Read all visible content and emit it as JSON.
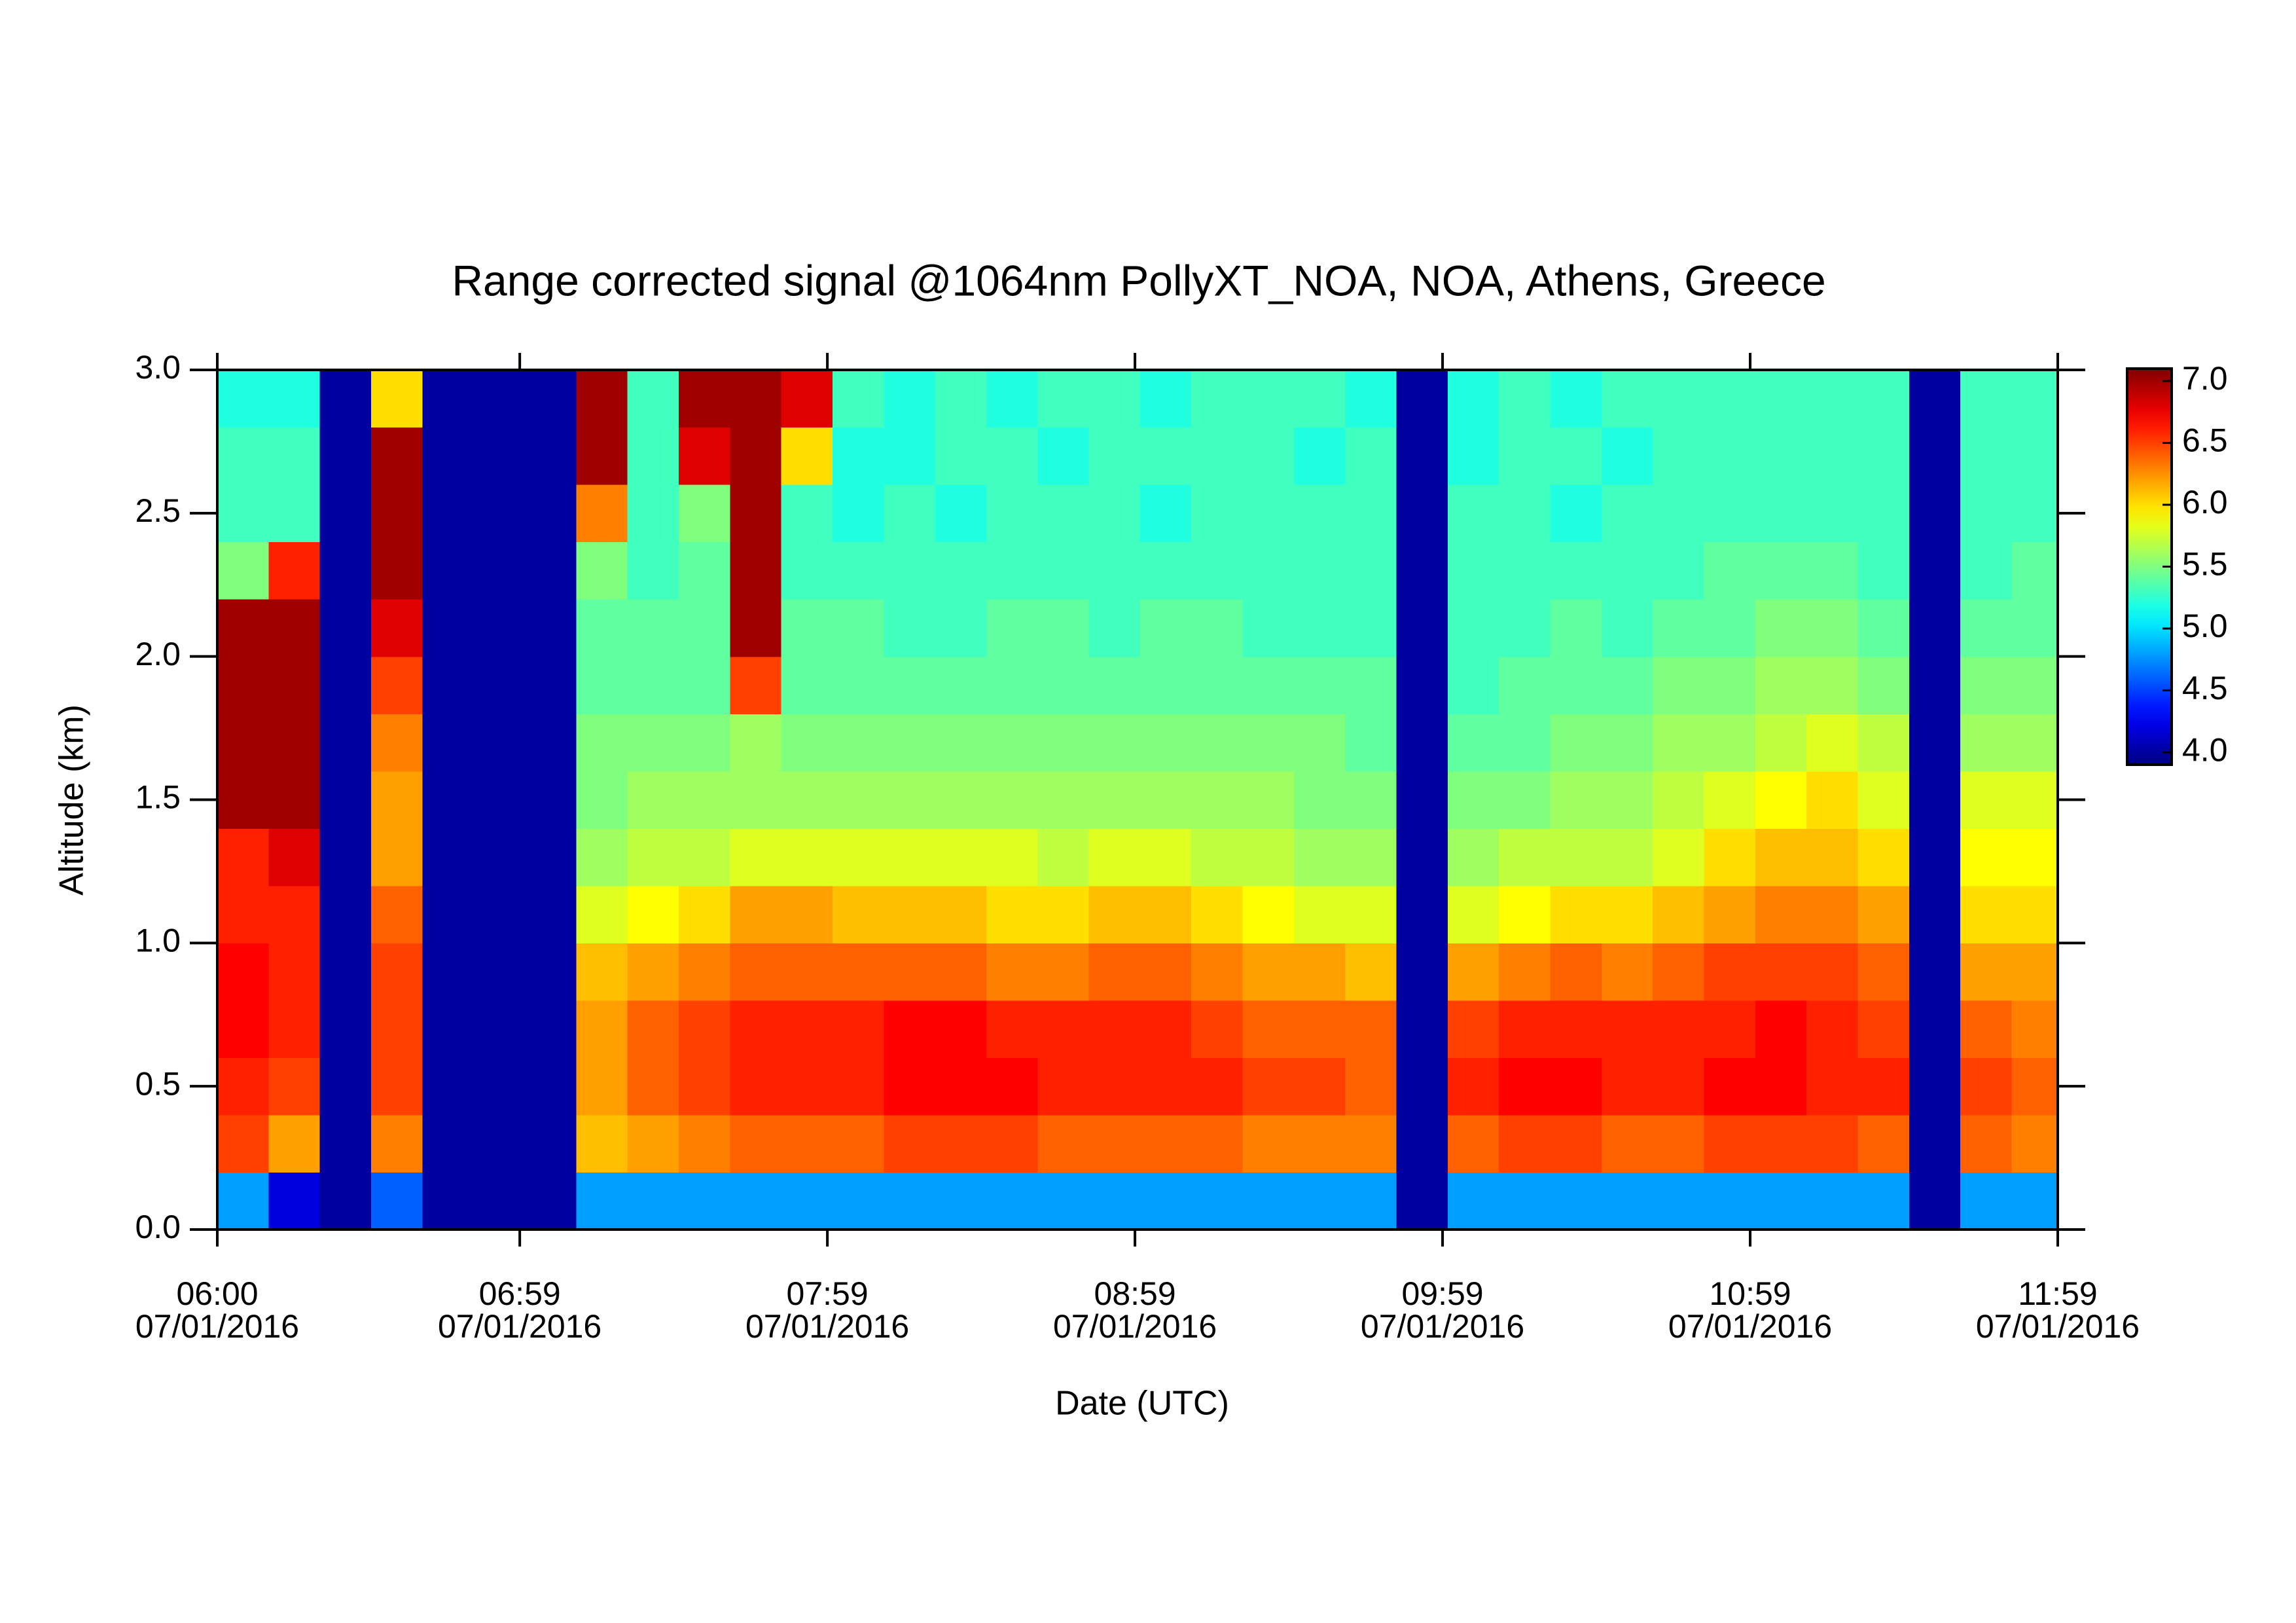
{
  "chart_data": {
    "type": "heatmap",
    "title": "Range corrected signal @1064nm  PollyXT_NOA, NOA, Athens, Greece",
    "x_label": "Date (UTC)",
    "y_label": "Altitude (km)",
    "colormap": "jet",
    "xlim": [
      "2016-07-01T06:00",
      "2016-07-01T11:59"
    ],
    "xticks": [
      {
        "value": "2016-07-01T06:00",
        "label": [
          "06:00",
          "07/01/2016"
        ]
      },
      {
        "value": "2016-07-01T06:59",
        "label": [
          "06:59",
          "07/01/2016"
        ]
      },
      {
        "value": "2016-07-01T07:59",
        "label": [
          "07:59",
          "07/01/2016"
        ]
      },
      {
        "value": "2016-07-01T08:59",
        "label": [
          "08:59",
          "07/01/2016"
        ]
      },
      {
        "value": "2016-07-01T09:59",
        "label": [
          "09:59",
          "07/01/2016"
        ]
      },
      {
        "value": "2016-07-01T10:59",
        "label": [
          "10:59",
          "07/01/2016"
        ]
      },
      {
        "value": "2016-07-01T11:59",
        "label": [
          "11:59",
          "07/01/2016"
        ]
      }
    ],
    "ylim": [
      0,
      3
    ],
    "yticks": [
      {
        "value": 0,
        "label": "0.0"
      },
      0.5,
      {
        "value": 1,
        "label": "1.0"
      },
      1.5,
      {
        "value": 2,
        "label": "2.0"
      },
      2.5,
      {
        "value": 3,
        "label": "3.0"
      }
    ],
    "zlim": [
      3.9,
      7.1
    ],
    "zticks": [
      {
        "value": 4,
        "label": "4.0"
      },
      4.5,
      {
        "value": 5,
        "label": "5.0"
      },
      5.5,
      {
        "value": 6,
        "label": "6.0"
      },
      6.5,
      {
        "value": 7,
        "label": "7.0"
      }
    ],
    "x": [
      "2016-07-01T06:00",
      "2016-07-01T06:10",
      "2016-07-01T06:20",
      "2016-07-01T06:30",
      "2016-07-01T06:40",
      "2016-07-01T06:50",
      "2016-07-01T07:00",
      "2016-07-01T07:10",
      "2016-07-01T07:20",
      "2016-07-01T07:30",
      "2016-07-01T07:40",
      "2016-07-01T07:50",
      "2016-07-01T08:00",
      "2016-07-01T08:10",
      "2016-07-01T08:20",
      "2016-07-01T08:30",
      "2016-07-01T08:40",
      "2016-07-01T08:50",
      "2016-07-01T09:00",
      "2016-07-01T09:10",
      "2016-07-01T09:20",
      "2016-07-01T09:30",
      "2016-07-01T09:40",
      "2016-07-01T09:50",
      "2016-07-01T10:00",
      "2016-07-01T10:10",
      "2016-07-01T10:20",
      "2016-07-01T10:30",
      "2016-07-01T10:40",
      "2016-07-01T10:50",
      "2016-07-01T11:00",
      "2016-07-01T11:10",
      "2016-07-01T11:20",
      "2016-07-01T11:30",
      "2016-07-01T11:40",
      "2016-07-01T11:50"
    ],
    "y": [
      0.1,
      0.3,
      0.5,
      0.7,
      0.9,
      1.1,
      1.3,
      1.5,
      1.7,
      1.9,
      2.1,
      2.3,
      2.5,
      2.7,
      2.9
    ],
    "z": [
      [
        4.8,
        6.5,
        6.6,
        6.7,
        6.7,
        6.6,
        6.6,
        7.0,
        7.0,
        7.0,
        7.0,
        5.5,
        5.3,
        5.3,
        5.2
      ],
      [
        4.2,
        6.2,
        6.5,
        6.6,
        6.6,
        6.6,
        6.8,
        7.0,
        7.0,
        7.0,
        7.0,
        6.6,
        5.3,
        5.3,
        5.2
      ],
      [
        4.0,
        4.0,
        4.0,
        4.0,
        4.0,
        4.0,
        4.0,
        4.0,
        4.0,
        4.0,
        4.0,
        4.0,
        4.0,
        4.0,
        4.0
      ],
      [
        4.6,
        6.3,
        6.5,
        6.5,
        6.5,
        6.4,
        6.2,
        6.2,
        6.3,
        6.5,
        6.8,
        7.0,
        7.0,
        7.0,
        6.0
      ],
      [
        4.0,
        4.0,
        4.0,
        4.0,
        4.0,
        4.0,
        4.0,
        4.0,
        4.0,
        4.0,
        4.0,
        4.0,
        4.0,
        4.0,
        4.0
      ],
      [
        4.0,
        4.0,
        4.0,
        4.0,
        4.0,
        4.0,
        4.0,
        4.0,
        4.0,
        4.0,
        4.0,
        4.0,
        4.0,
        4.0,
        4.0
      ],
      [
        4.0,
        4.0,
        4.0,
        4.0,
        4.0,
        4.0,
        4.0,
        4.0,
        4.0,
        4.0,
        4.0,
        4.0,
        4.0,
        4.0,
        4.0
      ],
      [
        4.8,
        6.1,
        6.2,
        6.2,
        6.1,
        5.8,
        5.6,
        5.5,
        5.5,
        5.4,
        5.4,
        5.5,
        6.3,
        7.0,
        7.0
      ],
      [
        4.8,
        6.2,
        6.4,
        6.4,
        6.2,
        5.9,
        5.7,
        5.6,
        5.5,
        5.4,
        5.4,
        5.3,
        5.3,
        5.3,
        5.3
      ],
      [
        4.8,
        6.3,
        6.5,
        6.5,
        6.3,
        6.0,
        5.7,
        5.6,
        5.5,
        5.4,
        5.4,
        5.4,
        5.5,
        6.8,
        7.0
      ],
      [
        4.8,
        6.4,
        6.6,
        6.6,
        6.4,
        6.2,
        5.8,
        5.6,
        5.6,
        6.5,
        7.0,
        7.0,
        7.0,
        7.0,
        7.0
      ],
      [
        4.8,
        6.4,
        6.6,
        6.6,
        6.4,
        6.2,
        5.8,
        5.6,
        5.5,
        5.4,
        5.4,
        5.3,
        5.3,
        6.0,
        6.8
      ],
      [
        4.8,
        6.4,
        6.6,
        6.6,
        6.4,
        6.1,
        5.8,
        5.6,
        5.5,
        5.4,
        5.4,
        5.3,
        5.2,
        5.2,
        5.3
      ],
      [
        4.8,
        6.5,
        6.7,
        6.7,
        6.4,
        6.1,
        5.8,
        5.6,
        5.5,
        5.4,
        5.3,
        5.3,
        5.3,
        5.2,
        5.2
      ],
      [
        4.8,
        6.5,
        6.7,
        6.7,
        6.4,
        6.1,
        5.8,
        5.6,
        5.5,
        5.4,
        5.3,
        5.3,
        5.2,
        5.3,
        5.3
      ],
      [
        4.8,
        6.5,
        6.7,
        6.6,
        6.3,
        6.0,
        5.8,
        5.6,
        5.5,
        5.4,
        5.4,
        5.3,
        5.3,
        5.3,
        5.2
      ],
      [
        4.8,
        6.4,
        6.6,
        6.6,
        6.3,
        6.0,
        5.7,
        5.6,
        5.5,
        5.4,
        5.4,
        5.3,
        5.3,
        5.2,
        5.3
      ],
      [
        4.8,
        6.4,
        6.6,
        6.6,
        6.4,
        6.1,
        5.8,
        5.6,
        5.5,
        5.4,
        5.3,
        5.3,
        5.3,
        5.3,
        5.3
      ],
      [
        4.8,
        6.4,
        6.6,
        6.6,
        6.4,
        6.1,
        5.8,
        5.6,
        5.5,
        5.4,
        5.4,
        5.3,
        5.2,
        5.3,
        5.2
      ],
      [
        4.8,
        6.4,
        6.6,
        6.5,
        6.3,
        6.0,
        5.7,
        5.6,
        5.5,
        5.4,
        5.4,
        5.3,
        5.3,
        5.3,
        5.3
      ],
      [
        4.8,
        6.3,
        6.5,
        6.4,
        6.2,
        5.9,
        5.7,
        5.6,
        5.5,
        5.4,
        5.3,
        5.3,
        5.3,
        5.3,
        5.3
      ],
      [
        4.8,
        6.3,
        6.5,
        6.4,
        6.2,
        5.8,
        5.6,
        5.5,
        5.5,
        5.4,
        5.3,
        5.3,
        5.3,
        5.2,
        5.3
      ],
      [
        4.8,
        6.3,
        6.4,
        6.4,
        6.1,
        5.8,
        5.6,
        5.5,
        5.4,
        5.4,
        5.3,
        5.3,
        5.3,
        5.3,
        5.2
      ],
      [
        4.0,
        4.0,
        4.0,
        4.0,
        4.0,
        4.0,
        4.0,
        4.0,
        4.0,
        4.0,
        4.0,
        4.0,
        4.0,
        4.0,
        4.0
      ],
      [
        4.8,
        6.4,
        6.6,
        6.5,
        6.2,
        5.8,
        5.6,
        5.5,
        5.4,
        5.3,
        5.3,
        5.3,
        5.3,
        5.2,
        5.2
      ],
      [
        4.8,
        6.5,
        6.7,
        6.6,
        6.3,
        5.9,
        5.7,
        5.5,
        5.4,
        5.4,
        5.3,
        5.3,
        5.3,
        5.3,
        5.3
      ],
      [
        4.8,
        6.5,
        6.7,
        6.6,
        6.4,
        6.0,
        5.7,
        5.6,
        5.5,
        5.4,
        5.4,
        5.3,
        5.2,
        5.3,
        5.2
      ],
      [
        4.8,
        6.4,
        6.6,
        6.6,
        6.3,
        6.0,
        5.7,
        5.6,
        5.5,
        5.4,
        5.3,
        5.3,
        5.3,
        5.2,
        5.3
      ],
      [
        4.8,
        6.4,
        6.6,
        6.6,
        6.4,
        6.1,
        5.8,
        5.7,
        5.6,
        5.5,
        5.4,
        5.3,
        5.3,
        5.3,
        5.3
      ],
      [
        4.8,
        6.5,
        6.7,
        6.6,
        6.5,
        6.2,
        6.0,
        5.8,
        5.6,
        5.5,
        5.4,
        5.4,
        5.3,
        5.3,
        5.3
      ],
      [
        4.8,
        6.5,
        6.7,
        6.7,
        6.5,
        6.3,
        6.1,
        5.9,
        5.7,
        5.6,
        5.5,
        5.4,
        5.3,
        5.3,
        5.3
      ],
      [
        4.8,
        6.5,
        6.6,
        6.6,
        6.5,
        6.3,
        6.1,
        6.0,
        5.8,
        5.6,
        5.5,
        5.4,
        5.3,
        5.3,
        5.3
      ],
      [
        4.8,
        6.4,
        6.6,
        6.5,
        6.4,
        6.2,
        6.0,
        5.8,
        5.7,
        5.5,
        5.4,
        5.3,
        5.3,
        5.3,
        5.3
      ],
      [
        4.0,
        4.0,
        4.0,
        4.0,
        4.0,
        4.0,
        4.0,
        4.0,
        4.0,
        4.0,
        4.0,
        4.0,
        4.0,
        4.0,
        4.0
      ],
      [
        4.8,
        6.4,
        6.5,
        6.4,
        6.2,
        6.0,
        5.9,
        5.8,
        5.6,
        5.5,
        5.4,
        5.3,
        5.3,
        5.3,
        5.3
      ],
      [
        4.8,
        6.3,
        6.4,
        6.3,
        6.2,
        6.0,
        5.9,
        5.8,
        5.6,
        5.5,
        5.4,
        5.4,
        5.3,
        5.3,
        5.3
      ]
    ]
  }
}
